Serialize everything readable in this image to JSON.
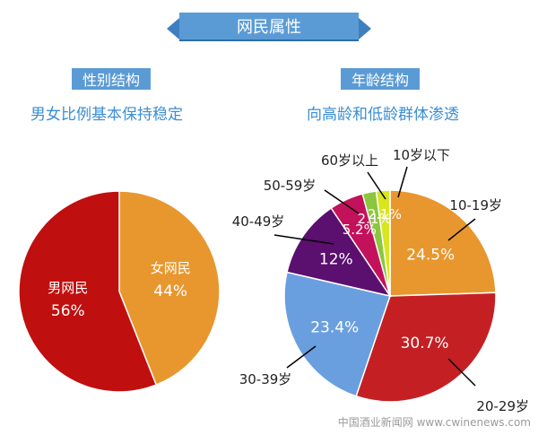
{
  "header": {
    "title": "网民属性"
  },
  "left": {
    "label": "性别结构",
    "subtitle": "男女比例基本保持稳定"
  },
  "right": {
    "label": "年龄结构",
    "subtitle": "向高龄和低龄群体渗透"
  },
  "watermark": "中国酒业新闻网 www.cwinenews.com",
  "chart_data": [
    {
      "type": "pie",
      "title": "性别结构",
      "slices": [
        {
          "label": "女网民",
          "value": 44,
          "display": "44%",
          "color": "#e8972e"
        },
        {
          "label": "男网民",
          "value": 56,
          "display": "56%",
          "color": "#c00f0f"
        }
      ]
    },
    {
      "type": "pie",
      "title": "年龄结构",
      "slices": [
        {
          "label": "10-19岁",
          "value": 24.5,
          "display": "24.5%",
          "color": "#e8972e"
        },
        {
          "label": "20-29岁",
          "value": 30.7,
          "display": "30.7%",
          "color": "#c42024"
        },
        {
          "label": "30-39岁",
          "value": 23.4,
          "display": "23.4%",
          "color": "#6a9fdf"
        },
        {
          "label": "40-49岁",
          "value": 12,
          "display": "12%",
          "color": "#5b0f6e"
        },
        {
          "label": "50-59岁",
          "value": 5.2,
          "display": "5.2%",
          "color": "#c4115c"
        },
        {
          "label": "60岁以上",
          "value": 2.1,
          "display": "2.1%",
          "color": "#8cc63e"
        },
        {
          "label": "10岁以下",
          "value": 2.1,
          "display": "2.1%",
          "color": "#d8e51f"
        }
      ]
    }
  ]
}
